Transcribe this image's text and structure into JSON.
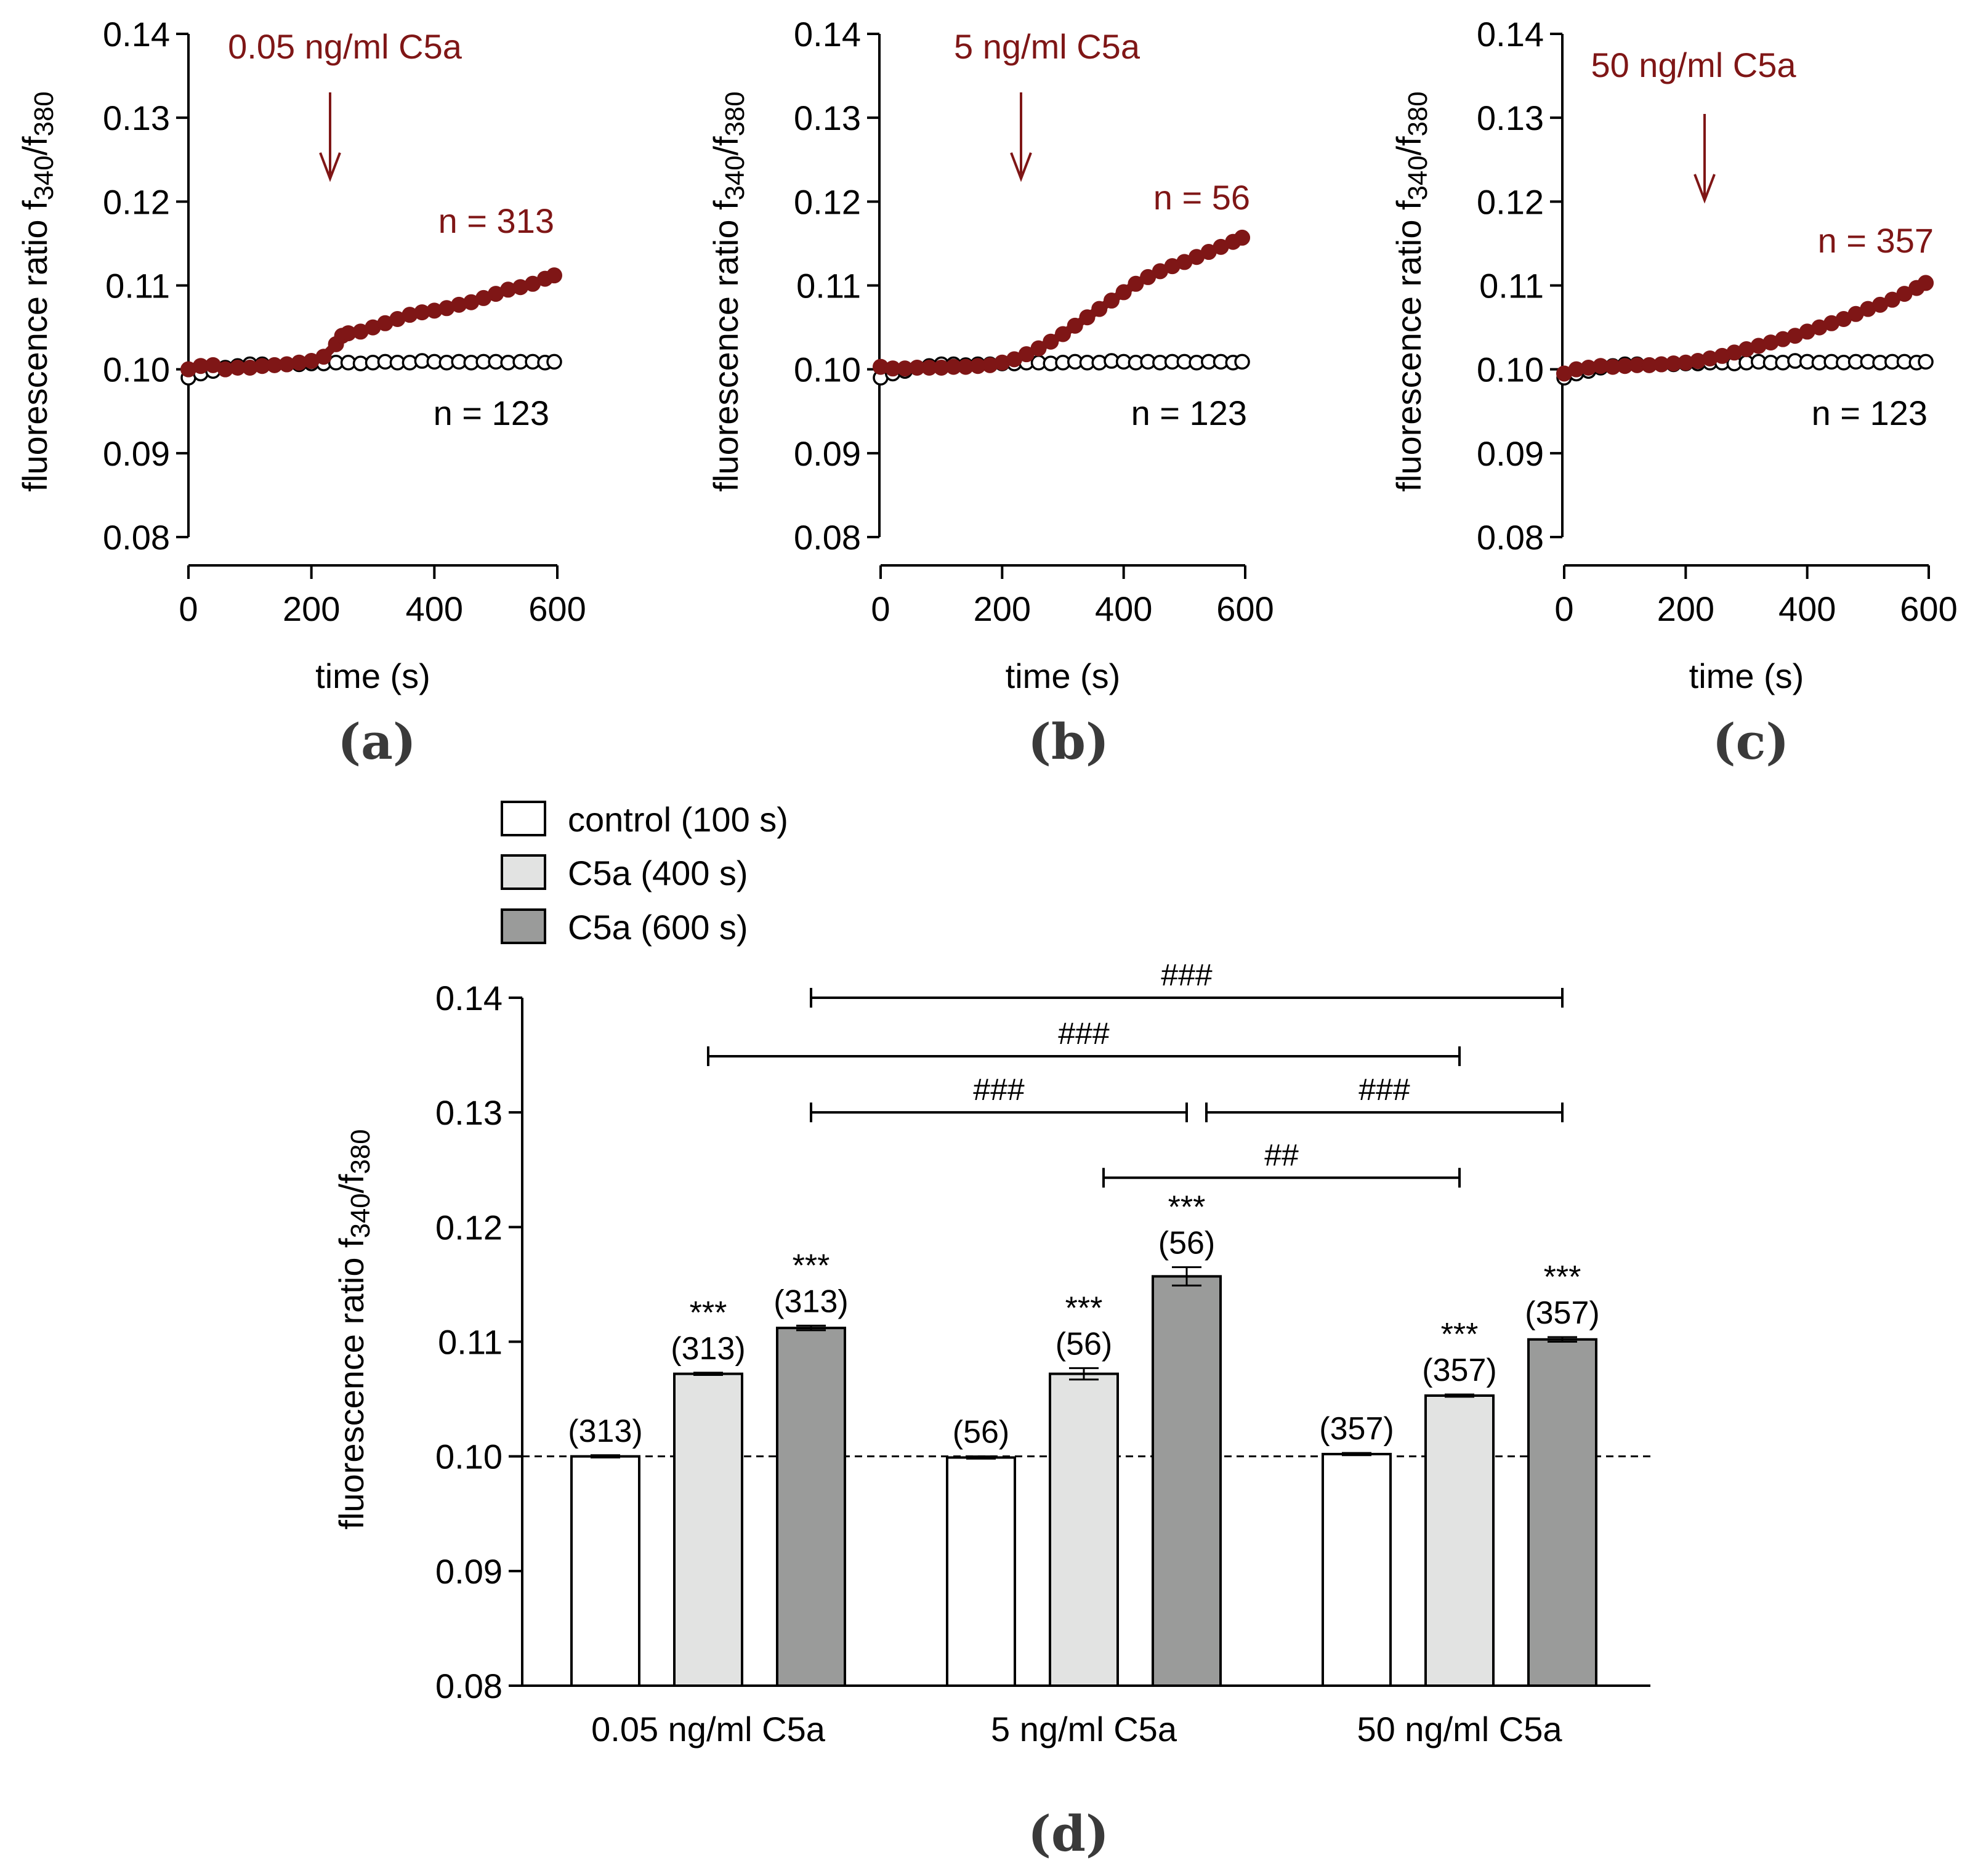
{
  "figure": {
    "panel_labels": [
      "(a)",
      "(b)",
      "(c)",
      "(d)"
    ]
  },
  "colors": {
    "c5a_series": "#7f1616",
    "control_series": "#000000",
    "bar_control": "#ffffff",
    "bar_c5a_400": "#e2e3e2",
    "bar_c5a_600": "#9a9b9a"
  },
  "chart_data": [
    {
      "type": "scatter",
      "panel": "(a)",
      "annotation": "0.05 ng/ml C5a",
      "arrow_at_x": 210,
      "xlabel": "time (s)",
      "ylabel_main": "fluorescence ratio f",
      "ylabel_sub1": "340",
      "ylabel_mid": "/f",
      "ylabel_sub2": "380",
      "xlim": [
        0,
        600
      ],
      "ylim": [
        0.08,
        0.14
      ],
      "xticks": [
        0,
        200,
        400,
        600
      ],
      "yticks": [
        0.08,
        0.09,
        0.1,
        0.11,
        0.12,
        0.13,
        0.14
      ],
      "series": [
        {
          "name": "control",
          "n_label": "n = 123",
          "x": [
            0,
            20,
            40,
            60,
            80,
            100,
            120,
            140,
            160,
            180,
            200,
            220,
            240,
            260,
            280,
            300,
            320,
            340,
            360,
            380,
            400,
            420,
            440,
            460,
            480,
            500,
            520,
            540,
            560,
            580,
            595
          ],
          "y": [
            0.099,
            0.0995,
            0.0998,
            0.1002,
            0.1004,
            0.1006,
            0.1006,
            0.1005,
            0.1006,
            0.1006,
            0.1007,
            0.1007,
            0.1008,
            0.1008,
            0.1007,
            0.1008,
            0.1009,
            0.1008,
            0.1008,
            0.101,
            0.1009,
            0.1008,
            0.1009,
            0.1008,
            0.1009,
            0.1009,
            0.1008,
            0.1009,
            0.1009,
            0.1008,
            0.1009
          ]
        },
        {
          "name": "C5a",
          "n_label": "n = 313",
          "x": [
            0,
            20,
            40,
            60,
            80,
            100,
            120,
            140,
            160,
            180,
            200,
            220,
            240,
            250,
            260,
            280,
            300,
            320,
            340,
            360,
            380,
            400,
            420,
            440,
            460,
            480,
            500,
            520,
            540,
            560,
            580,
            595
          ],
          "y": [
            0.1,
            0.1004,
            0.1005,
            0.1,
            0.1002,
            0.1002,
            0.1004,
            0.1005,
            0.1006,
            0.1008,
            0.101,
            0.1015,
            0.103,
            0.104,
            0.1043,
            0.1045,
            0.105,
            0.1055,
            0.106,
            0.1065,
            0.1068,
            0.107,
            0.1073,
            0.1077,
            0.108,
            0.1085,
            0.109,
            0.1095,
            0.1098,
            0.1102,
            0.1108,
            0.1112
          ]
        }
      ]
    },
    {
      "type": "scatter",
      "panel": "(b)",
      "annotation": "5 ng/ml C5a",
      "arrow_at_x": 210,
      "xlabel": "time (s)",
      "ylabel_main": "fluorescence ratio f",
      "ylabel_sub1": "340",
      "ylabel_mid": "/f",
      "ylabel_sub2": "380",
      "xlim": [
        0,
        600
      ],
      "ylim": [
        0.08,
        0.14
      ],
      "xticks": [
        0,
        200,
        400,
        600
      ],
      "yticks": [
        0.08,
        0.09,
        0.1,
        0.11,
        0.12,
        0.13,
        0.14
      ],
      "series": [
        {
          "name": "control",
          "n_label": "n = 123",
          "x": [
            0,
            20,
            40,
            60,
            80,
            100,
            120,
            140,
            160,
            180,
            200,
            220,
            240,
            260,
            280,
            300,
            320,
            340,
            360,
            380,
            400,
            420,
            440,
            460,
            480,
            500,
            520,
            540,
            560,
            580,
            595
          ],
          "y": [
            0.099,
            0.0995,
            0.0998,
            0.1002,
            0.1004,
            0.1006,
            0.1006,
            0.1005,
            0.1006,
            0.1006,
            0.1007,
            0.1007,
            0.1008,
            0.1008,
            0.1007,
            0.1008,
            0.1009,
            0.1008,
            0.1008,
            0.101,
            0.1009,
            0.1008,
            0.1009,
            0.1008,
            0.1009,
            0.1009,
            0.1008,
            0.1009,
            0.1009,
            0.1008,
            0.1009
          ]
        },
        {
          "name": "C5a",
          "n_label": "n = 56",
          "x": [
            0,
            20,
            40,
            60,
            80,
            100,
            120,
            140,
            160,
            180,
            200,
            220,
            240,
            260,
            280,
            300,
            320,
            340,
            360,
            380,
            400,
            420,
            440,
            460,
            480,
            500,
            520,
            540,
            560,
            580,
            595
          ],
          "y": [
            0.1003,
            0.1001,
            0.1001,
            0.1002,
            0.1002,
            0.1002,
            0.1003,
            0.1003,
            0.1004,
            0.1005,
            0.1008,
            0.1012,
            0.1018,
            0.1025,
            0.1033,
            0.1042,
            0.1052,
            0.1062,
            0.1072,
            0.1082,
            0.1092,
            0.1102,
            0.111,
            0.1117,
            0.1123,
            0.1128,
            0.1134,
            0.114,
            0.1146,
            0.1152,
            0.1157
          ]
        }
      ]
    },
    {
      "type": "scatter",
      "panel": "(c)",
      "annotation": "50 ng/ml C5a",
      "arrow_at_x": 210,
      "xlabel": "time (s)",
      "ylabel_main": "fluorescence ratio f",
      "ylabel_sub1": "340",
      "ylabel_mid": "/f",
      "ylabel_sub2": "380",
      "xlim": [
        0,
        600
      ],
      "ylim": [
        0.08,
        0.14
      ],
      "xticks": [
        0,
        200,
        400,
        600
      ],
      "yticks": [
        0.08,
        0.09,
        0.1,
        0.11,
        0.12,
        0.13,
        0.14
      ],
      "series": [
        {
          "name": "control",
          "n_label": "n = 123",
          "x": [
            0,
            20,
            40,
            60,
            80,
            100,
            120,
            140,
            160,
            180,
            200,
            220,
            240,
            260,
            280,
            300,
            320,
            340,
            360,
            380,
            400,
            420,
            440,
            460,
            480,
            500,
            520,
            540,
            560,
            580,
            595
          ],
          "y": [
            0.099,
            0.0995,
            0.0998,
            0.1002,
            0.1004,
            0.1006,
            0.1006,
            0.1005,
            0.1006,
            0.1006,
            0.1007,
            0.1007,
            0.1008,
            0.1008,
            0.1007,
            0.1008,
            0.1009,
            0.1008,
            0.1008,
            0.101,
            0.1009,
            0.1008,
            0.1009,
            0.1008,
            0.1009,
            0.1009,
            0.1008,
            0.1009,
            0.1009,
            0.1008,
            0.1009
          ]
        },
        {
          "name": "C5a",
          "n_label": "n = 357",
          "x": [
            0,
            20,
            40,
            60,
            80,
            100,
            120,
            140,
            160,
            180,
            200,
            220,
            240,
            260,
            280,
            300,
            320,
            340,
            360,
            380,
            400,
            420,
            440,
            460,
            480,
            500,
            520,
            540,
            560,
            580,
            595
          ],
          "y": [
            0.0995,
            0.1,
            0.1002,
            0.1004,
            0.1003,
            0.1004,
            0.1005,
            0.1005,
            0.1006,
            0.1007,
            0.1008,
            0.101,
            0.1013,
            0.1016,
            0.102,
            0.1024,
            0.1028,
            0.1032,
            0.1036,
            0.104,
            0.1045,
            0.105,
            0.1055,
            0.106,
            0.1066,
            0.1072,
            0.1077,
            0.1083,
            0.109,
            0.1097,
            0.1103
          ]
        }
      ]
    },
    {
      "type": "bar",
      "panel": "(d)",
      "categories": [
        "0.05 ng/ml C5a",
        "5 ng/ml C5a",
        "50 ng/ml C5a"
      ],
      "ylabel_main": "fluorescence ratio f",
      "ylabel_sub1": "340",
      "ylabel_mid": "/f",
      "ylabel_sub2": "380",
      "ylim": [
        0.08,
        0.14
      ],
      "yticks": [
        0.08,
        0.09,
        0.1,
        0.11,
        0.12,
        0.13,
        0.14
      ],
      "baseline": 0.1,
      "legend_position": "top-left",
      "series": [
        {
          "name": "control (100 s)",
          "values": [
            0.1,
            0.0999,
            0.1002
          ],
          "errors": [
            0.0001,
            0.0001,
            0.0001
          ],
          "sig": [
            "",
            "",
            ""
          ],
          "n": [
            "(313)",
            "(56)",
            "(357)"
          ]
        },
        {
          "name": "C5a (400 s)",
          "values": [
            0.1072,
            0.1072,
            0.1053
          ],
          "errors": [
            0.0001,
            0.0005,
            0.0001
          ],
          "sig": [
            "***",
            "***",
            "***"
          ],
          "n": [
            "(313)",
            "(56)",
            "(357)"
          ]
        },
        {
          "name": "C5a (600 s)",
          "values": [
            0.1112,
            0.1157,
            0.1102
          ],
          "errors": [
            0.0002,
            0.0008,
            0.0002
          ],
          "sig": [
            "***",
            "***",
            "***"
          ],
          "n": [
            "(313)",
            "(56)",
            "(357)"
          ]
        }
      ],
      "comparisons": [
        {
          "label": "###",
          "from": "0.05 ng/ml C5a / C5a (600 s)",
          "to": "50 ng/ml C5a / C5a (600 s)",
          "level": 0.14
        },
        {
          "label": "###",
          "from": "0.05 ng/ml C5a / C5a (400 s)",
          "to": "50 ng/ml C5a / C5a (400 s)",
          "level": 0.1349
        },
        {
          "label": "###",
          "from": "0.05 ng/ml C5a / C5a (600 s)",
          "to": "5 ng/ml C5a / C5a (600 s)",
          "level": 0.13
        },
        {
          "label": "###",
          "from": "5 ng/ml C5a / C5a (600 s)",
          "to": "50 ng/ml C5a / C5a (600 s)",
          "level": 0.13
        },
        {
          "label": "##",
          "from": "5 ng/ml C5a / C5a (400 s)",
          "to": "50 ng/ml C5a / C5a (400 s)",
          "level": 0.1243
        }
      ]
    }
  ]
}
